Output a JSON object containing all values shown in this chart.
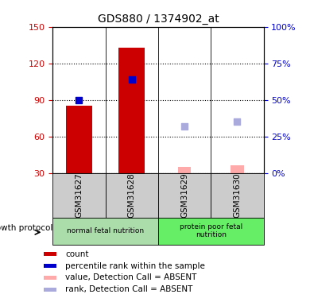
{
  "title": "GDS880 / 1374902_at",
  "samples": [
    "GSM31627",
    "GSM31628",
    "GSM31629",
    "GSM31630"
  ],
  "bar_values": [
    85,
    133,
    null,
    null
  ],
  "absent_bar_values": [
    null,
    null,
    35,
    36
  ],
  "rank_dots": [
    90,
    107,
    null,
    null
  ],
  "absent_rank_dots": [
    null,
    null,
    68,
    72
  ],
  "rank_dot_color": "#0000cc",
  "absent_rank_dot_color": "#aaaadd",
  "bar_color": "#cc0000",
  "absent_bar_color": "#ffaaaa",
  "ylim_left": [
    30,
    150
  ],
  "ylim_right": [
    0,
    100
  ],
  "yticks_left": [
    30,
    60,
    90,
    120,
    150
  ],
  "yticks_right": [
    0,
    25,
    50,
    75,
    100
  ],
  "ytick_labels_right": [
    "0%",
    "25%",
    "50%",
    "75%",
    "100%"
  ],
  "left_tick_color": "#cc0000",
  "right_tick_color": "#0000cc",
  "group1_label": "normal fetal nutrition",
  "group2_label": "protein poor fetal\nnutrition",
  "group1_color": "#aaddaa",
  "group2_color": "#66ee66",
  "sample_bg_color": "#cccccc",
  "factor_label": "growth protocol",
  "legend_items": [
    {
      "label": "count",
      "color": "#cc0000"
    },
    {
      "label": "percentile rank within the sample",
      "color": "#0000cc"
    },
    {
      "label": "value, Detection Call = ABSENT",
      "color": "#ffaaaa"
    },
    {
      "label": "rank, Detection Call = ABSENT",
      "color": "#aaaadd"
    }
  ],
  "bar_width": 0.5,
  "absent_bar_width": 0.25,
  "dot_size": 40,
  "grid_linestyle": ":",
  "grid_color": "black",
  "grid_linewidth": 0.8
}
